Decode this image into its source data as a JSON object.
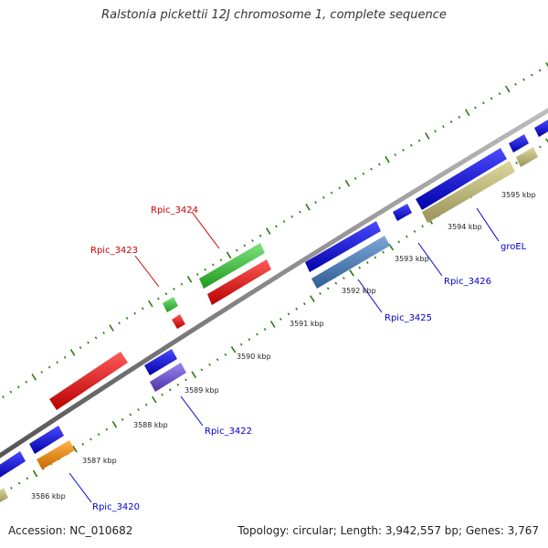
{
  "title": "Ralstonia pickettii 12J chromosome 1, complete sequence",
  "footer": {
    "accession": "Accession: NC_010682",
    "summary": "Topology: circular; Length: 3,942,557 bp; Genes: 3,767"
  },
  "colors": {
    "backbone": "#808080",
    "tick": "#2a7a12",
    "red": "#e81818",
    "green": "#3fc63f",
    "blue": "#1010e0",
    "steelblue": "#4a7ab8",
    "purple": "#6a4fd0",
    "orange": "#f08a10",
    "khaki": "#bdb77a",
    "label_red": "#cc0000",
    "label_blue": "#0000cc"
  },
  "ticks": {
    "outer_labels": [],
    "inner_labels": [
      {
        "text": "3586 kbp",
        "t": 0.06
      },
      {
        "text": "3587 kbp",
        "t": 0.135
      },
      {
        "text": "3588 kbp",
        "t": 0.215
      },
      {
        "text": "3589 kbp",
        "t": 0.29
      },
      {
        "text": "3590 kbp",
        "t": 0.37
      },
      {
        "text": "3591 kbp",
        "t": 0.45
      },
      {
        "text": "3592 kbp",
        "t": 0.55
      },
      {
        "text": "3593 kbp",
        "t": 0.64
      },
      {
        "text": "3594 kbp",
        "t": 0.73
      },
      {
        "text": "3595 kbp",
        "t": 0.815
      }
    ]
  },
  "labels": [
    {
      "text": "Rpic_3424",
      "color": "red"
    },
    {
      "text": "Rpic_3423",
      "color": "red"
    },
    {
      "text": "Rpic_3422",
      "color": "blue"
    },
    {
      "text": "Rpic_3420",
      "color": "blue"
    },
    {
      "text": "Rpic_3425",
      "color": "blue"
    },
    {
      "text": "Rpic_3426",
      "color": "blue"
    },
    {
      "text": "groEL",
      "color": "blue"
    }
  ]
}
